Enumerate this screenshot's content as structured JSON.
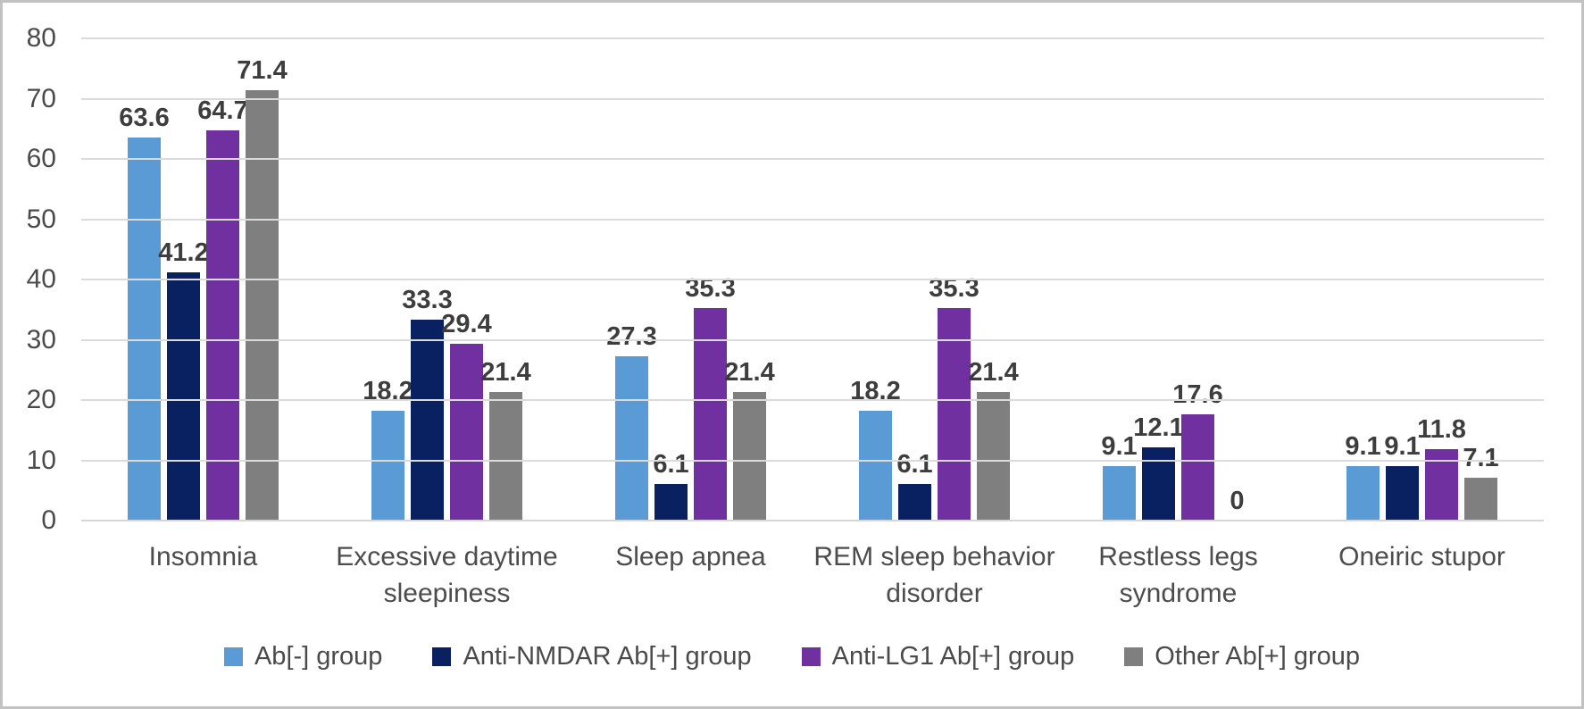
{
  "chart_data": {
    "type": "bar",
    "title": "",
    "xlabel": "",
    "ylabel": "",
    "ylim": [
      0,
      80
    ],
    "yticks": [
      0,
      10,
      20,
      30,
      40,
      50,
      60,
      70,
      80
    ],
    "grid": true,
    "legend_position": "bottom",
    "categories": [
      "Insomnia",
      "Excessive daytime sleepiness",
      "Sleep apnea",
      "REM sleep behavior disorder",
      "Restless legs syndrome",
      "Oneiric stupor"
    ],
    "series": [
      {
        "name": "Ab[-] group",
        "color": "#5B9BD5",
        "values": [
          63.6,
          18.2,
          27.3,
          18.2,
          9.1,
          9.1
        ]
      },
      {
        "name": "Anti-NMDAR Ab[+] group",
        "color": "#0A2161",
        "values": [
          41.2,
          33.3,
          6.1,
          6.1,
          12.1,
          9.1
        ]
      },
      {
        "name": "Anti-LG1 Ab[+] group",
        "color": "#7030A0",
        "values": [
          64.7,
          29.4,
          35.3,
          35.3,
          17.6,
          11.8
        ]
      },
      {
        "name": "Other Ab[+] group",
        "color": "#7F7F7F",
        "values": [
          71.4,
          21.4,
          21.4,
          21.4,
          0,
          7.1
        ]
      }
    ]
  },
  "colors": {
    "gridline": "#dbdbdb",
    "axis_text": "#4a4a4a",
    "value_text": "#3d3d3d",
    "frame_border": "#c2c2c2",
    "background": "#ffffff"
  }
}
